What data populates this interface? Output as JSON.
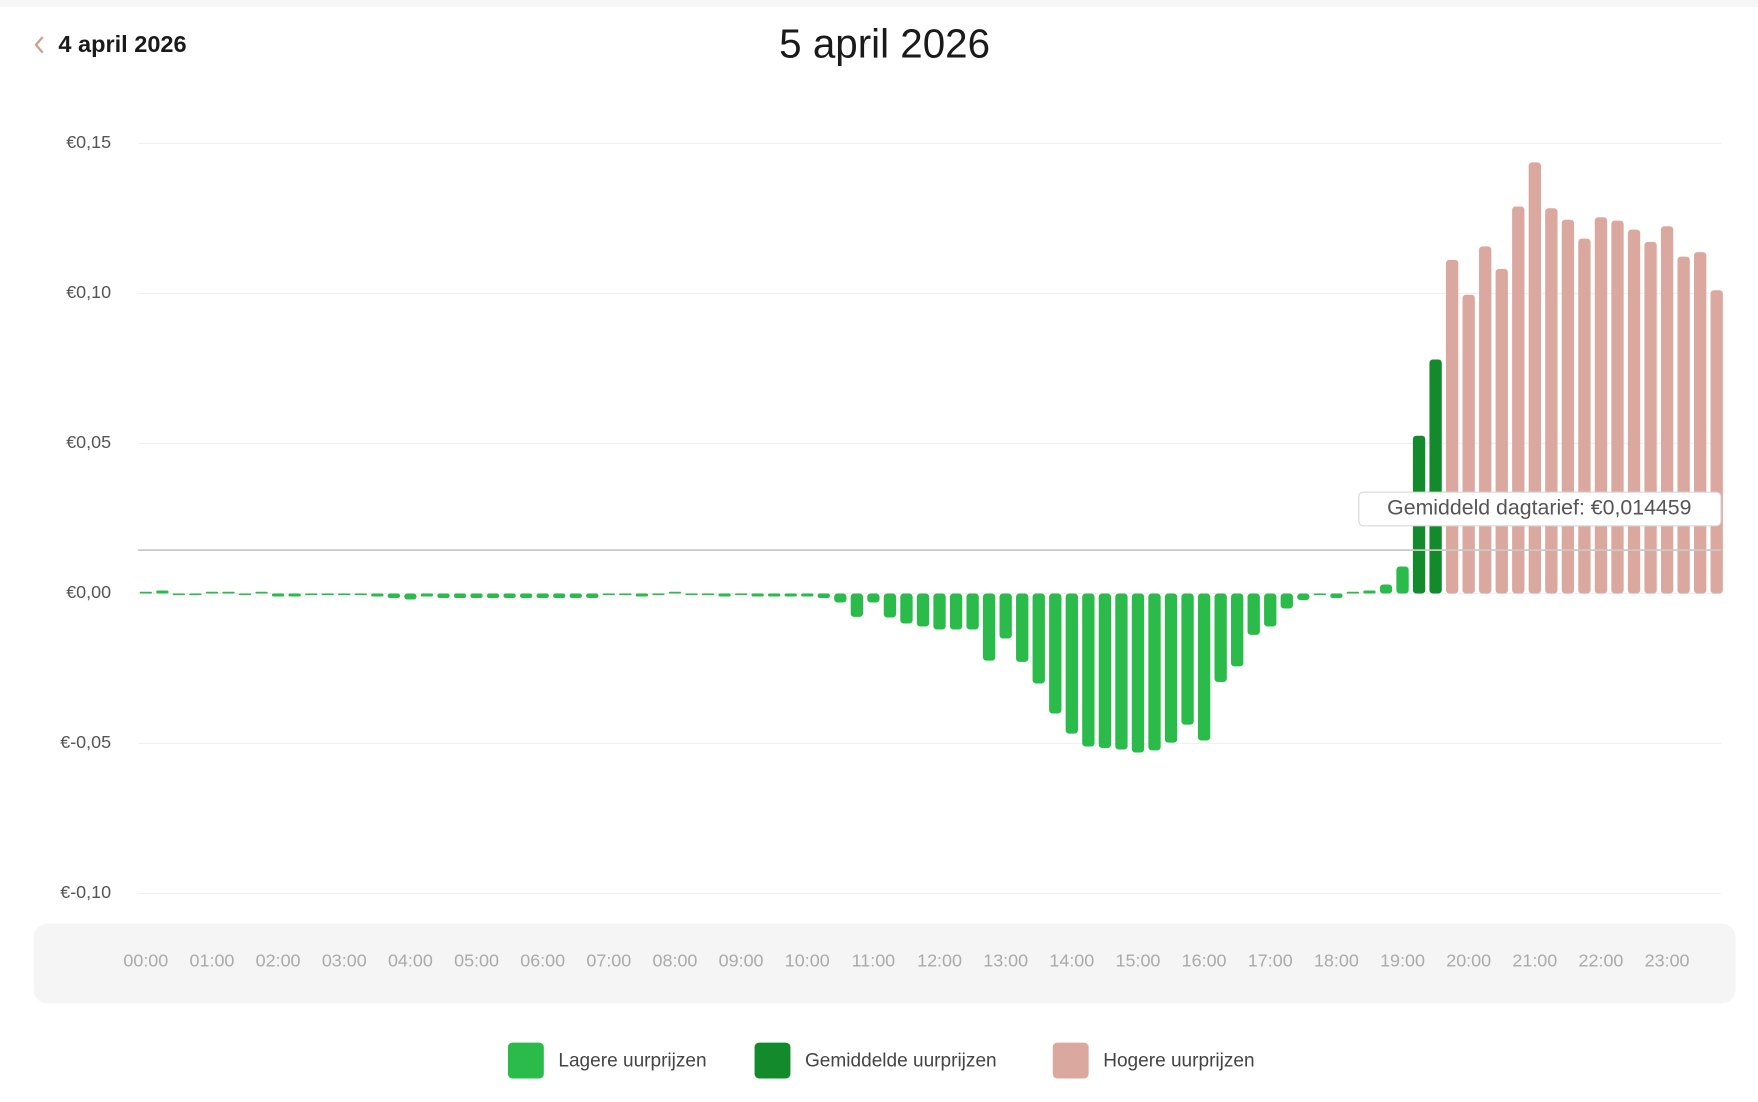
{
  "header": {
    "back_link": "4 april 2026"
  },
  "chart_data": {
    "type": "bar",
    "title": "5 april 2026",
    "categories": [
      "00:00",
      null,
      null,
      null,
      "01:00",
      null,
      null,
      null,
      "02:00",
      null,
      null,
      null,
      "03:00",
      null,
      null,
      null,
      "04:00",
      null,
      null,
      null,
      "05:00",
      null,
      null,
      null,
      "06:00",
      null,
      null,
      null,
      "07:00",
      null,
      null,
      null,
      "08:00",
      null,
      null,
      null,
      "09:00",
      null,
      null,
      null,
      "10:00",
      null,
      null,
      null,
      "11:00",
      null,
      null,
      null,
      "12:00",
      null,
      null,
      null,
      "13:00",
      null,
      null,
      null,
      "14:00",
      null,
      null,
      null,
      "15:00",
      null,
      null,
      null,
      "16:00",
      null,
      null,
      null,
      "17:00",
      null,
      null,
      null,
      "18:00",
      null,
      null,
      null,
      "19:00",
      null,
      null,
      null,
      "20:00",
      null,
      null,
      null,
      "21:00",
      null,
      null,
      null,
      "22:00",
      null,
      null,
      null,
      "23:00",
      null,
      null,
      null
    ],
    "series": [
      {
        "name": "Lagere uurprijzen",
        "color": "#2bbb4a",
        "values": [
          0.0005,
          0.001,
          -0.0005,
          -0.0003,
          0,
          0,
          -0.0002,
          0,
          -0.001,
          -0.001,
          -0.0005,
          -0.0005,
          -0.0005,
          -0.0005,
          -0.001,
          -0.0015,
          -0.002,
          -0.001,
          -0.0015,
          -0.0015,
          -0.0015,
          -0.0015,
          -0.0015,
          -0.0015,
          -0.0015,
          -0.0015,
          -0.0015,
          -0.0015,
          -0.0005,
          -0.0005,
          -0.001,
          -0.0003,
          0,
          -0.0005,
          -0.0005,
          -0.001,
          -0.0003,
          -0.001,
          -0.001,
          -0.001,
          -0.001,
          -0.0015,
          -0.003,
          -0.0078,
          -0.003,
          -0.008,
          -0.01,
          -0.011,
          -0.012,
          -0.012,
          -0.012,
          -0.0224,
          -0.015,
          -0.0228,
          -0.03,
          -0.04,
          -0.0467,
          -0.051,
          -0.0515,
          -0.052,
          -0.053,
          -0.0523,
          -0.0497,
          -0.0437,
          -0.049,
          -0.0295,
          -0.0243,
          -0.0138,
          -0.011,
          -0.005,
          -0.0022,
          -0.0003,
          -0.0015,
          0,
          0.001,
          0.003,
          0.009,
          null,
          null,
          null,
          null,
          null,
          null,
          null,
          null,
          null,
          null,
          null,
          null,
          null,
          null,
          null,
          null,
          null,
          null,
          null
        ]
      },
      {
        "name": "Gemiddelde uurprijzen",
        "color": "#138a2b",
        "values": [
          null,
          null,
          null,
          null,
          null,
          null,
          null,
          null,
          null,
          null,
          null,
          null,
          null,
          null,
          null,
          null,
          null,
          null,
          null,
          null,
          null,
          null,
          null,
          null,
          null,
          null,
          null,
          null,
          null,
          null,
          null,
          null,
          null,
          null,
          null,
          null,
          null,
          null,
          null,
          null,
          null,
          null,
          null,
          null,
          null,
          null,
          null,
          null,
          null,
          null,
          null,
          null,
          null,
          null,
          null,
          null,
          null,
          null,
          null,
          null,
          null,
          null,
          null,
          null,
          null,
          null,
          null,
          null,
          null,
          null,
          null,
          null,
          null,
          null,
          null,
          null,
          null,
          0.0526,
          0.078,
          null,
          null,
          null,
          null,
          null,
          null,
          null,
          null,
          null,
          null,
          null,
          null,
          null,
          null,
          null,
          null,
          null
        ]
      },
      {
        "name": "Hogere uurprijzen",
        "color": "#dba8a0",
        "values": [
          null,
          null,
          null,
          null,
          null,
          null,
          null,
          null,
          null,
          null,
          null,
          null,
          null,
          null,
          null,
          null,
          null,
          null,
          null,
          null,
          null,
          null,
          null,
          null,
          null,
          null,
          null,
          null,
          null,
          null,
          null,
          null,
          null,
          null,
          null,
          null,
          null,
          null,
          null,
          null,
          null,
          null,
          null,
          null,
          null,
          null,
          null,
          null,
          null,
          null,
          null,
          null,
          null,
          null,
          null,
          null,
          null,
          null,
          null,
          null,
          null,
          null,
          null,
          null,
          null,
          null,
          null,
          null,
          null,
          null,
          null,
          null,
          null,
          null,
          null,
          null,
          null,
          null,
          null,
          0.1112,
          0.0996,
          0.1157,
          0.1082,
          0.129,
          0.1437,
          0.1284,
          0.1246,
          0.1183,
          0.1254,
          0.1243,
          0.1213,
          0.1172,
          0.1224,
          0.1123,
          0.1138,
          0.1011
        ]
      }
    ],
    "ylim": [
      -0.1,
      0.15
    ],
    "yticks": [
      {
        "value": 0.15,
        "label": "€0,15"
      },
      {
        "value": 0.1,
        "label": "€0,10"
      },
      {
        "value": 0.05,
        "label": "€0,05"
      },
      {
        "value": 0,
        "label": "€0,00"
      },
      {
        "value": -0.05,
        "label": "€-0,05"
      },
      {
        "value": -0.1,
        "label": "€-0,10"
      }
    ],
    "grid": true,
    "average_line": {
      "value": 0.014459,
      "label": "Gemiddeld dagtarief: €0,014459"
    }
  }
}
